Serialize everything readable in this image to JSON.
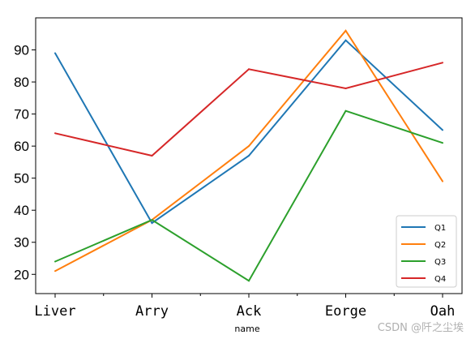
{
  "chart_data": {
    "type": "line",
    "categories": [
      "Liver",
      "Arry",
      "Ack",
      "Eorge",
      "Oah"
    ],
    "xlabel": "name",
    "ylabel": "",
    "ylim": [
      14,
      100
    ],
    "yticks": [
      20,
      30,
      40,
      50,
      60,
      70,
      80,
      90
    ],
    "grid": false,
    "legend_position": "bottom-right",
    "series": [
      {
        "name": "Q1",
        "color": "#1f77b4",
        "values": [
          89,
          36,
          57,
          93,
          65
        ]
      },
      {
        "name": "Q2",
        "color": "#ff7f0e",
        "values": [
          21,
          37,
          60,
          96,
          49
        ]
      },
      {
        "name": "Q3",
        "color": "#2ca02c",
        "values": [
          24,
          37,
          18,
          71,
          61
        ]
      },
      {
        "name": "Q4",
        "color": "#d62728",
        "values": [
          64,
          57,
          84,
          78,
          86
        ]
      }
    ]
  },
  "watermark": "CSDN @阡之尘埃"
}
